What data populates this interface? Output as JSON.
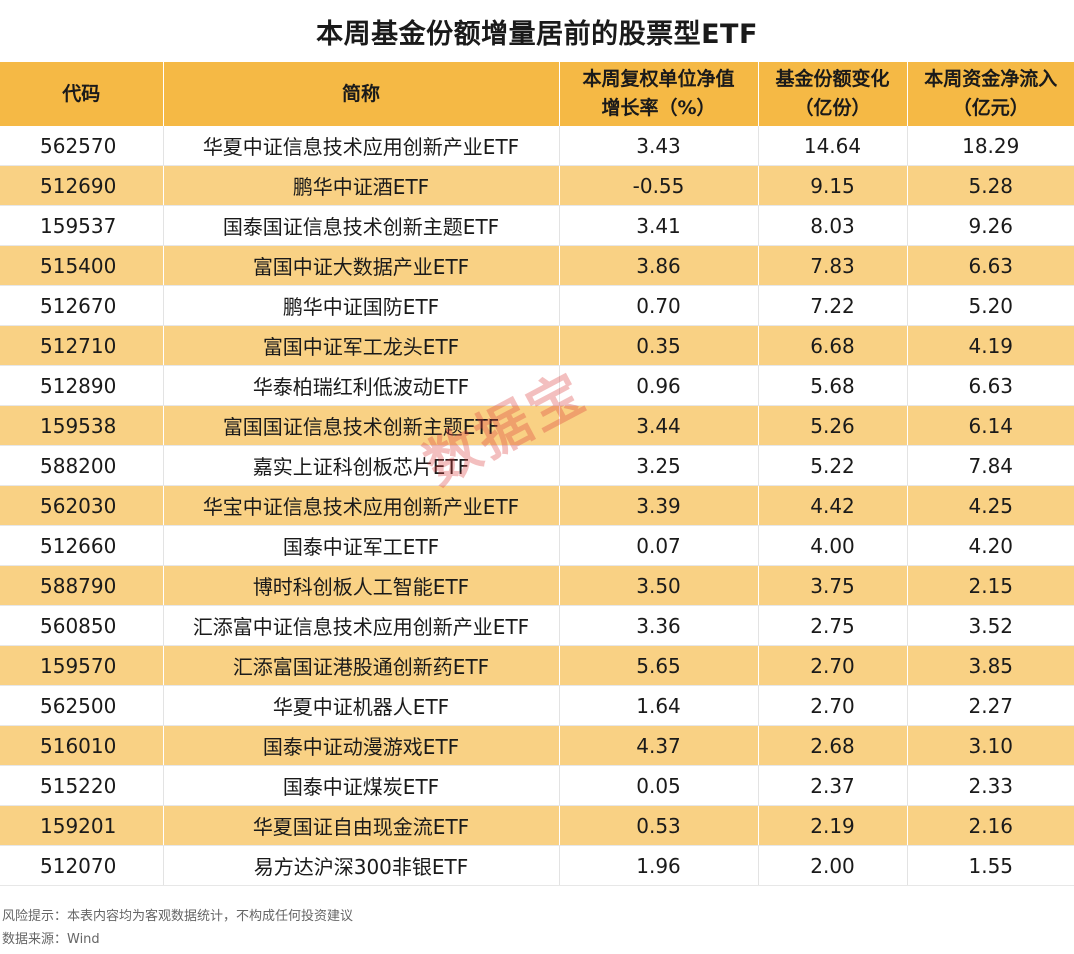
{
  "title": "本周基金份额增量居前的股票型ETF",
  "headers": {
    "code": "代码",
    "name": "简称",
    "growth_line1": "本周复权单位净值",
    "growth_line2": "增长率（%）",
    "share_line1": "基金份额变化",
    "share_line2": "（亿份）",
    "inflow_line1": "本周资金净流入",
    "inflow_line2": "（亿元）"
  },
  "rows": [
    {
      "code": "562570",
      "name": "华夏中证信息技术应用创新产业ETF",
      "growth": "3.43",
      "share": "14.64",
      "inflow": "18.29"
    },
    {
      "code": "512690",
      "name": "鹏华中证酒ETF",
      "growth": "-0.55",
      "share": "9.15",
      "inflow": "5.28"
    },
    {
      "code": "159537",
      "name": "国泰国证信息技术创新主题ETF",
      "growth": "3.41",
      "share": "8.03",
      "inflow": "9.26"
    },
    {
      "code": "515400",
      "name": "富国中证大数据产业ETF",
      "growth": "3.86",
      "share": "7.83",
      "inflow": "6.63"
    },
    {
      "code": "512670",
      "name": "鹏华中证国防ETF",
      "growth": "0.70",
      "share": "7.22",
      "inflow": "5.20"
    },
    {
      "code": "512710",
      "name": "富国中证军工龙头ETF",
      "growth": "0.35",
      "share": "6.68",
      "inflow": "4.19"
    },
    {
      "code": "512890",
      "name": "华泰柏瑞红利低波动ETF",
      "growth": "0.96",
      "share": "5.68",
      "inflow": "6.63"
    },
    {
      "code": "159538",
      "name": "富国国证信息技术创新主题ETF",
      "growth": "3.44",
      "share": "5.26",
      "inflow": "6.14"
    },
    {
      "code": "588200",
      "name": "嘉实上证科创板芯片ETF",
      "growth": "3.25",
      "share": "5.22",
      "inflow": "7.84"
    },
    {
      "code": "562030",
      "name": "华宝中证信息技术应用创新产业ETF",
      "growth": "3.39",
      "share": "4.42",
      "inflow": "4.25"
    },
    {
      "code": "512660",
      "name": "国泰中证军工ETF",
      "growth": "0.07",
      "share": "4.00",
      "inflow": "4.20"
    },
    {
      "code": "588790",
      "name": "博时科创板人工智能ETF",
      "growth": "3.50",
      "share": "3.75",
      "inflow": "2.15"
    },
    {
      "code": "560850",
      "name": "汇添富中证信息技术应用创新产业ETF",
      "growth": "3.36",
      "share": "2.75",
      "inflow": "3.52"
    },
    {
      "code": "159570",
      "name": "汇添富国证港股通创新药ETF",
      "growth": "5.65",
      "share": "2.70",
      "inflow": "3.85"
    },
    {
      "code": "562500",
      "name": "华夏中证机器人ETF",
      "growth": "1.64",
      "share": "2.70",
      "inflow": "2.27"
    },
    {
      "code": "516010",
      "name": "国泰中证动漫游戏ETF",
      "growth": "4.37",
      "share": "2.68",
      "inflow": "3.10"
    },
    {
      "code": "515220",
      "name": "国泰中证煤炭ETF",
      "growth": "0.05",
      "share": "2.37",
      "inflow": "2.33"
    },
    {
      "code": "159201",
      "name": "华夏国证自由现金流ETF",
      "growth": "0.53",
      "share": "2.19",
      "inflow": "2.16"
    },
    {
      "code": "512070",
      "name": "易方达沪深300非银ETF",
      "growth": "1.96",
      "share": "2.00",
      "inflow": "1.55"
    }
  ],
  "footer": {
    "risk_note": "风险提示：本表内容均为客观数据统计，不构成任何投资建议",
    "source": "数据来源：Wind"
  },
  "watermark": "数据宝",
  "colors": {
    "header_bg": "#f5b945",
    "alt_row_bg": "#f9d184"
  }
}
